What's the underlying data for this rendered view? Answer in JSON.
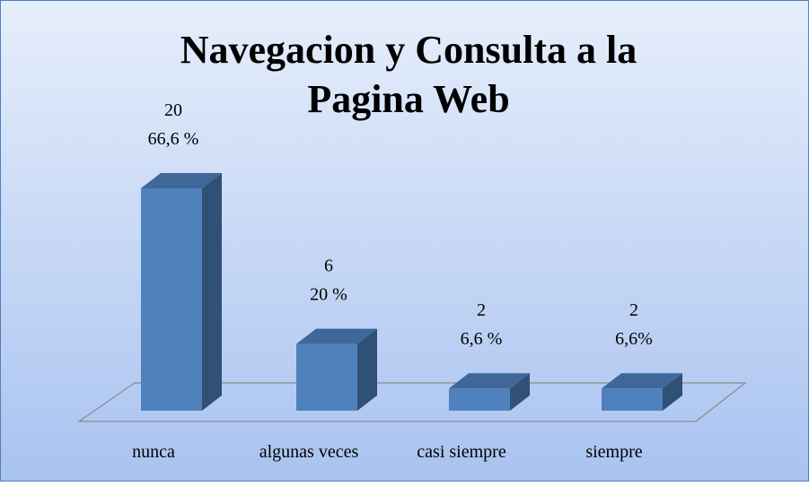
{
  "chart_data": {
    "type": "bar3d",
    "title": "Navegacion y Consulta a la Pagina Web",
    "categories": [
      "nunca",
      "algunas veces",
      "casi siempre",
      "siempre"
    ],
    "values": [
      20,
      6,
      2,
      2
    ],
    "percent_labels": [
      "66,6 %",
      "20 %",
      "6,6 %",
      "6,6%"
    ],
    "color": "#4f81bd"
  }
}
